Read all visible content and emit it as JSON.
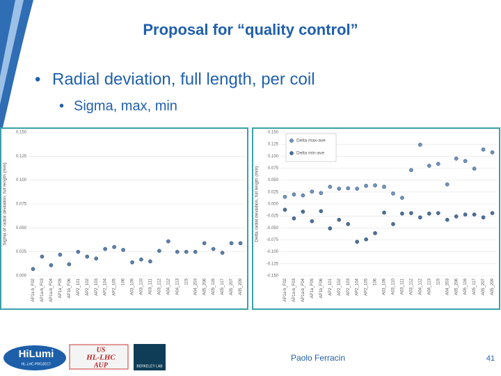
{
  "title": "Proposal for “quality control”",
  "bullets": [
    "Radial deviation, full length, per coil",
    "Sigma, max, min"
  ],
  "footer": {
    "author": "Paolo Ferracin",
    "page": "41"
  },
  "logos": [
    "HiLumi",
    "HL-LHC PROJECT",
    "US",
    "HL-LHC",
    "AUP",
    "BERKELEY LAB"
  ],
  "chart_data": [
    {
      "type": "scatter",
      "ylabel": "Sigma of radial deviation, full length (mm)",
      "categories": [
        "AP1a b_F02",
        "AP1a-b_F03",
        "AP1a-b_F04",
        "AP1a_F05",
        "AP1b_F06",
        "AP2_101",
        "AP2_102",
        "AP2_103",
        "AP2_104",
        "AP2_105",
        "106",
        "A03_109",
        "A03_110",
        "A03_111",
        "A03_112",
        "A04_112",
        "A04_113",
        "115",
        "A04_203",
        "A05_206",
        "A05_116",
        "A05_117",
        "A05_207",
        "A05_209"
      ],
      "series": [
        {
          "name": null,
          "color": "#5a7ea8",
          "values": [
            0.007,
            0.02,
            0.011,
            0.022,
            0.012,
            0.025,
            0.02,
            0.018,
            0.028,
            0.03,
            0.027,
            0.014,
            0.017,
            0.015,
            0.026,
            0.036,
            0.025,
            0.025,
            0.025,
            0.034,
            0.028,
            0.024,
            0.034,
            0.034
          ]
        }
      ],
      "ylim": [
        0,
        0.15
      ],
      "yticks": [
        {
          "value": 0,
          "label": "0.000"
        },
        {
          "value": 0.025,
          "label": "0.025"
        },
        {
          "value": 0.05,
          "label": "0.050"
        },
        {
          "value": 0.075,
          "label": "0.075"
        },
        {
          "value": 0.1,
          "label": "0.100"
        },
        {
          "value": 0.125,
          "label": "0.125"
        },
        {
          "value": 0.15,
          "label": "0.150"
        }
      ],
      "grid": true
    },
    {
      "type": "scatter",
      "ylabel": "Delta radial deviation, full length (mm)",
      "categories": [
        "AP1a b_F02",
        "AP1a-b_F03",
        "AP1a-b_F04",
        "AP1a_F05",
        "AP1b_F06",
        "AP2_101",
        "AP2_102",
        "AP2_103",
        "AP2_104",
        "AP2_105",
        "106",
        "A03_109",
        "A03_110",
        "A03_111",
        "A03_112",
        "A04_112",
        "A04_113",
        "115",
        "A04_203",
        "A05_206",
        "A05_116",
        "A05_117",
        "A05_207",
        "A05_209"
      ],
      "series": [
        {
          "name": "Delta max-ave",
          "color": "#6f93bd",
          "values": [
            0.015,
            0.02,
            0.018,
            0.026,
            0.023,
            0.036,
            0.032,
            0.033,
            0.032,
            0.038,
            0.039,
            0.036,
            0.022,
            0.013,
            0.071,
            0.124,
            0.08,
            0.084,
            0.041,
            0.095,
            0.09,
            0.074,
            0.114,
            0.108
          ]
        },
        {
          "name": "Delta min-ave",
          "color": "#4d6f97",
          "values": [
            -0.012,
            -0.03,
            -0.016,
            -0.036,
            -0.015,
            -0.051,
            -0.033,
            -0.042,
            -0.079,
            -0.074,
            -0.061,
            -0.018,
            -0.042,
            -0.02,
            -0.019,
            -0.028,
            -0.02,
            -0.019,
            -0.033,
            -0.026,
            -0.022,
            -0.022,
            -0.028,
            -0.019
          ]
        }
      ],
      "ylim": [
        -0.15,
        0.15
      ],
      "yticks": [
        {
          "value": -0.15,
          "label": "-0.150"
        },
        {
          "value": -0.125,
          "label": "-0.125"
        },
        {
          "value": -0.1,
          "label": "-0.100"
        },
        {
          "value": -0.075,
          "label": "-0.075"
        },
        {
          "value": -0.05,
          "label": "-0.050"
        },
        {
          "value": -0.025,
          "label": "-0.025"
        },
        {
          "value": 0,
          "label": "0.000"
        },
        {
          "value": 0.025,
          "label": "0.025"
        },
        {
          "value": 0.05,
          "label": "0.050"
        },
        {
          "value": 0.075,
          "label": "0.075"
        },
        {
          "value": 0.1,
          "label": "0.100"
        },
        {
          "value": 0.125,
          "label": "0.125"
        },
        {
          "value": 0.15,
          "label": "0.150"
        }
      ],
      "grid": true,
      "legend": "upper left"
    }
  ]
}
